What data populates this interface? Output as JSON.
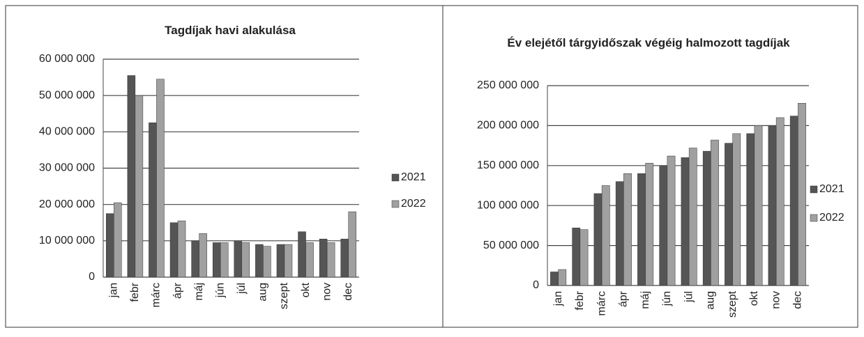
{
  "chart_data": [
    {
      "type": "bar",
      "title": "Tagdíjak havi alakulása",
      "categories": [
        "jan",
        "febr",
        "márc",
        "ápr",
        "máj",
        "jún",
        "júl",
        "aug",
        "szept",
        "okt",
        "nov",
        "dec"
      ],
      "series": [
        {
          "name": "2021",
          "color": "#555555",
          "values": [
            17500000,
            55500000,
            42500000,
            15000000,
            10000000,
            9500000,
            10000000,
            9000000,
            9000000,
            12500000,
            10500000,
            10500000
          ]
        },
        {
          "name": "2022",
          "color": "#a0a0a0",
          "values": [
            20500000,
            50000000,
            54500000,
            15500000,
            12000000,
            9500000,
            9500000,
            8500000,
            9000000,
            9500000,
            9500000,
            18000000
          ]
        }
      ],
      "ylim": [
        0,
        60000000
      ],
      "yticks": [
        0,
        {
          "value": 10000000,
          "label": "10 000 000"
        },
        {
          "value": 20000000,
          "label": "20 000 000"
        },
        {
          "value": 30000000,
          "label": "30 000 000"
        },
        {
          "value": 40000000,
          "label": "40 000 000"
        },
        {
          "value": 50000000,
          "label": "50 000 000"
        },
        {
          "value": 60000000,
          "label": "60 000 000"
        }
      ],
      "grid": true,
      "legend": "right"
    },
    {
      "type": "bar",
      "title": "Év elejétől tárgyidőszak végéig halmozott tagdíjak",
      "categories": [
        "jan",
        "febr",
        "márc",
        "ápr",
        "máj",
        "jún",
        "júl",
        "aug",
        "szept",
        "okt",
        "nov",
        "dec"
      ],
      "series": [
        {
          "name": "2021",
          "color": "#555555",
          "values": [
            17000000,
            72000000,
            115000000,
            130000000,
            140000000,
            150000000,
            160000000,
            168000000,
            178000000,
            190000000,
            200000000,
            212000000
          ]
        },
        {
          "name": "2022",
          "color": "#a0a0a0",
          "values": [
            20000000,
            70000000,
            125000000,
            140000000,
            153000000,
            162000000,
            172000000,
            182000000,
            190000000,
            200000000,
            210000000,
            228000000
          ]
        }
      ],
      "ylim": [
        0,
        250000000
      ],
      "yticks": [
        0,
        {
          "value": 50000000,
          "label": "50 000 000"
        },
        {
          "value": 100000000,
          "label": "100 000 000"
        },
        {
          "value": 150000000,
          "label": "150 000 000"
        },
        {
          "value": 200000000,
          "label": "200 000 000"
        },
        {
          "value": 250000000,
          "label": "250 000 000"
        }
      ],
      "grid": true,
      "legend": "right"
    }
  ]
}
